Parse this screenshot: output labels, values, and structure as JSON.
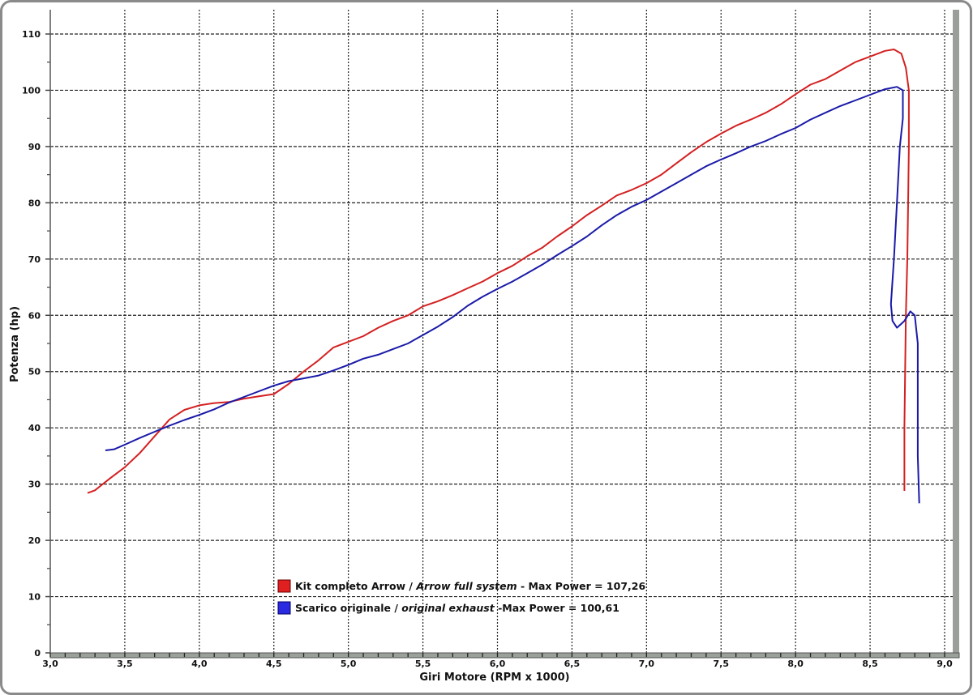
{
  "chart_data": {
    "type": "line",
    "title": "",
    "xlabel": "Giri Motore (RPM x 1000)",
    "ylabel": "Potenza (hp)",
    "xlim": [
      3.0,
      9.0
    ],
    "ylim": [
      0,
      110
    ],
    "xticks": [
      "3,0",
      "3,5",
      "4,0",
      "4,5",
      "5,0",
      "5,5",
      "6,0",
      "6,5",
      "7,0",
      "7,5",
      "8,0",
      "8,5",
      "9,0"
    ],
    "yticks": [
      "0",
      "10",
      "20",
      "30",
      "40",
      "50",
      "60",
      "70",
      "80",
      "90",
      "100",
      "110"
    ],
    "grid": true,
    "legend_position": "bottom-center",
    "series": [
      {
        "name": "Kit completo Arrow / Arrow full system",
        "legend_plain": "Kit completo Arrow / ",
        "legend_italic": "Arrow full system",
        "legend_suffix": " - Max Power = 107,26",
        "max_power": "107,26",
        "color": "#d42020",
        "points": [
          [
            3.25,
            28.4
          ],
          [
            3.3,
            28.9
          ],
          [
            3.4,
            31
          ],
          [
            3.5,
            33
          ],
          [
            3.6,
            35.5
          ],
          [
            3.7,
            38.5
          ],
          [
            3.8,
            41.5
          ],
          [
            3.9,
            43.2
          ],
          [
            4.0,
            44
          ],
          [
            4.1,
            44.4
          ],
          [
            4.2,
            44.6
          ],
          [
            4.3,
            45.2
          ],
          [
            4.4,
            45.6
          ],
          [
            4.5,
            46
          ],
          [
            4.6,
            47.8
          ],
          [
            4.7,
            50
          ],
          [
            4.8,
            52
          ],
          [
            4.9,
            54.3
          ],
          [
            5.0,
            55.3
          ],
          [
            5.1,
            56.3
          ],
          [
            5.2,
            57.8
          ],
          [
            5.3,
            59
          ],
          [
            5.4,
            60
          ],
          [
            5.5,
            61.6
          ],
          [
            5.6,
            62.5
          ],
          [
            5.7,
            63.6
          ],
          [
            5.8,
            64.8
          ],
          [
            5.9,
            66
          ],
          [
            6.0,
            67.5
          ],
          [
            6.1,
            68.8
          ],
          [
            6.2,
            70.5
          ],
          [
            6.3,
            72
          ],
          [
            6.4,
            74
          ],
          [
            6.5,
            75.8
          ],
          [
            6.6,
            77.8
          ],
          [
            6.7,
            79.5
          ],
          [
            6.8,
            81.3
          ],
          [
            6.9,
            82.3
          ],
          [
            7.0,
            83.5
          ],
          [
            7.1,
            85
          ],
          [
            7.2,
            87
          ],
          [
            7.3,
            89
          ],
          [
            7.4,
            90.8
          ],
          [
            7.5,
            92.3
          ],
          [
            7.6,
            93.7
          ],
          [
            7.7,
            94.8
          ],
          [
            7.8,
            96
          ],
          [
            7.9,
            97.5
          ],
          [
            8.0,
            99.3
          ],
          [
            8.1,
            101
          ],
          [
            8.2,
            102
          ],
          [
            8.3,
            103.5
          ],
          [
            8.4,
            105
          ],
          [
            8.5,
            106
          ],
          [
            8.6,
            107
          ],
          [
            8.66,
            107.26
          ],
          [
            8.71,
            106.5
          ],
          [
            8.74,
            104
          ],
          [
            8.76,
            100
          ],
          [
            8.76,
            90
          ],
          [
            8.755,
            80
          ],
          [
            8.75,
            70
          ],
          [
            8.74,
            60
          ],
          [
            8.735,
            50
          ],
          [
            8.73,
            40
          ],
          [
            8.73,
            28.8
          ]
        ]
      },
      {
        "name": "Scarico originale / original exhaust",
        "legend_plain": "Scarico originale / ",
        "legend_italic": "original exhaust",
        "legend_suffix": " -Max Power = 100,61",
        "max_power": "100,61",
        "color": "#1a1aa8",
        "points": [
          [
            3.37,
            36
          ],
          [
            3.43,
            36.2
          ],
          [
            3.5,
            37
          ],
          [
            3.6,
            38.2
          ],
          [
            3.7,
            39.3
          ],
          [
            3.8,
            40.4
          ],
          [
            3.9,
            41.4
          ],
          [
            4.0,
            42.3
          ],
          [
            4.1,
            43.3
          ],
          [
            4.2,
            44.5
          ],
          [
            4.3,
            45.5
          ],
          [
            4.4,
            46.5
          ],
          [
            4.5,
            47.5
          ],
          [
            4.6,
            48.3
          ],
          [
            4.7,
            48.8
          ],
          [
            4.8,
            49.3
          ],
          [
            4.9,
            50.2
          ],
          [
            5.0,
            51.2
          ],
          [
            5.1,
            52.3
          ],
          [
            5.2,
            53
          ],
          [
            5.3,
            54
          ],
          [
            5.4,
            55
          ],
          [
            5.5,
            56.5
          ],
          [
            5.6,
            58
          ],
          [
            5.7,
            59.7
          ],
          [
            5.8,
            61.7
          ],
          [
            5.9,
            63.3
          ],
          [
            6.0,
            64.7
          ],
          [
            6.1,
            66
          ],
          [
            6.2,
            67.5
          ],
          [
            6.3,
            69
          ],
          [
            6.4,
            70.7
          ],
          [
            6.5,
            72.3
          ],
          [
            6.6,
            74
          ],
          [
            6.7,
            76
          ],
          [
            6.8,
            77.8
          ],
          [
            6.9,
            79.3
          ],
          [
            7.0,
            80.5
          ],
          [
            7.1,
            82
          ],
          [
            7.2,
            83.5
          ],
          [
            7.3,
            85
          ],
          [
            7.4,
            86.5
          ],
          [
            7.5,
            87.7
          ],
          [
            7.6,
            88.8
          ],
          [
            7.7,
            90
          ],
          [
            7.8,
            91
          ],
          [
            7.9,
            92.2
          ],
          [
            8.0,
            93.3
          ],
          [
            8.1,
            94.8
          ],
          [
            8.2,
            96
          ],
          [
            8.3,
            97.2
          ],
          [
            8.4,
            98.2
          ],
          [
            8.5,
            99.2
          ],
          [
            8.6,
            100.2
          ],
          [
            8.68,
            100.61
          ],
          [
            8.72,
            100
          ],
          [
            8.72,
            95
          ],
          [
            8.7,
            90
          ],
          [
            8.68,
            80
          ],
          [
            8.66,
            70
          ],
          [
            8.64,
            62
          ],
          [
            8.65,
            59
          ],
          [
            8.68,
            57.8
          ],
          [
            8.73,
            59
          ],
          [
            8.77,
            60.7
          ],
          [
            8.8,
            60
          ],
          [
            8.82,
            55
          ],
          [
            8.82,
            45
          ],
          [
            8.82,
            35
          ],
          [
            8.83,
            26.6
          ]
        ]
      }
    ]
  }
}
